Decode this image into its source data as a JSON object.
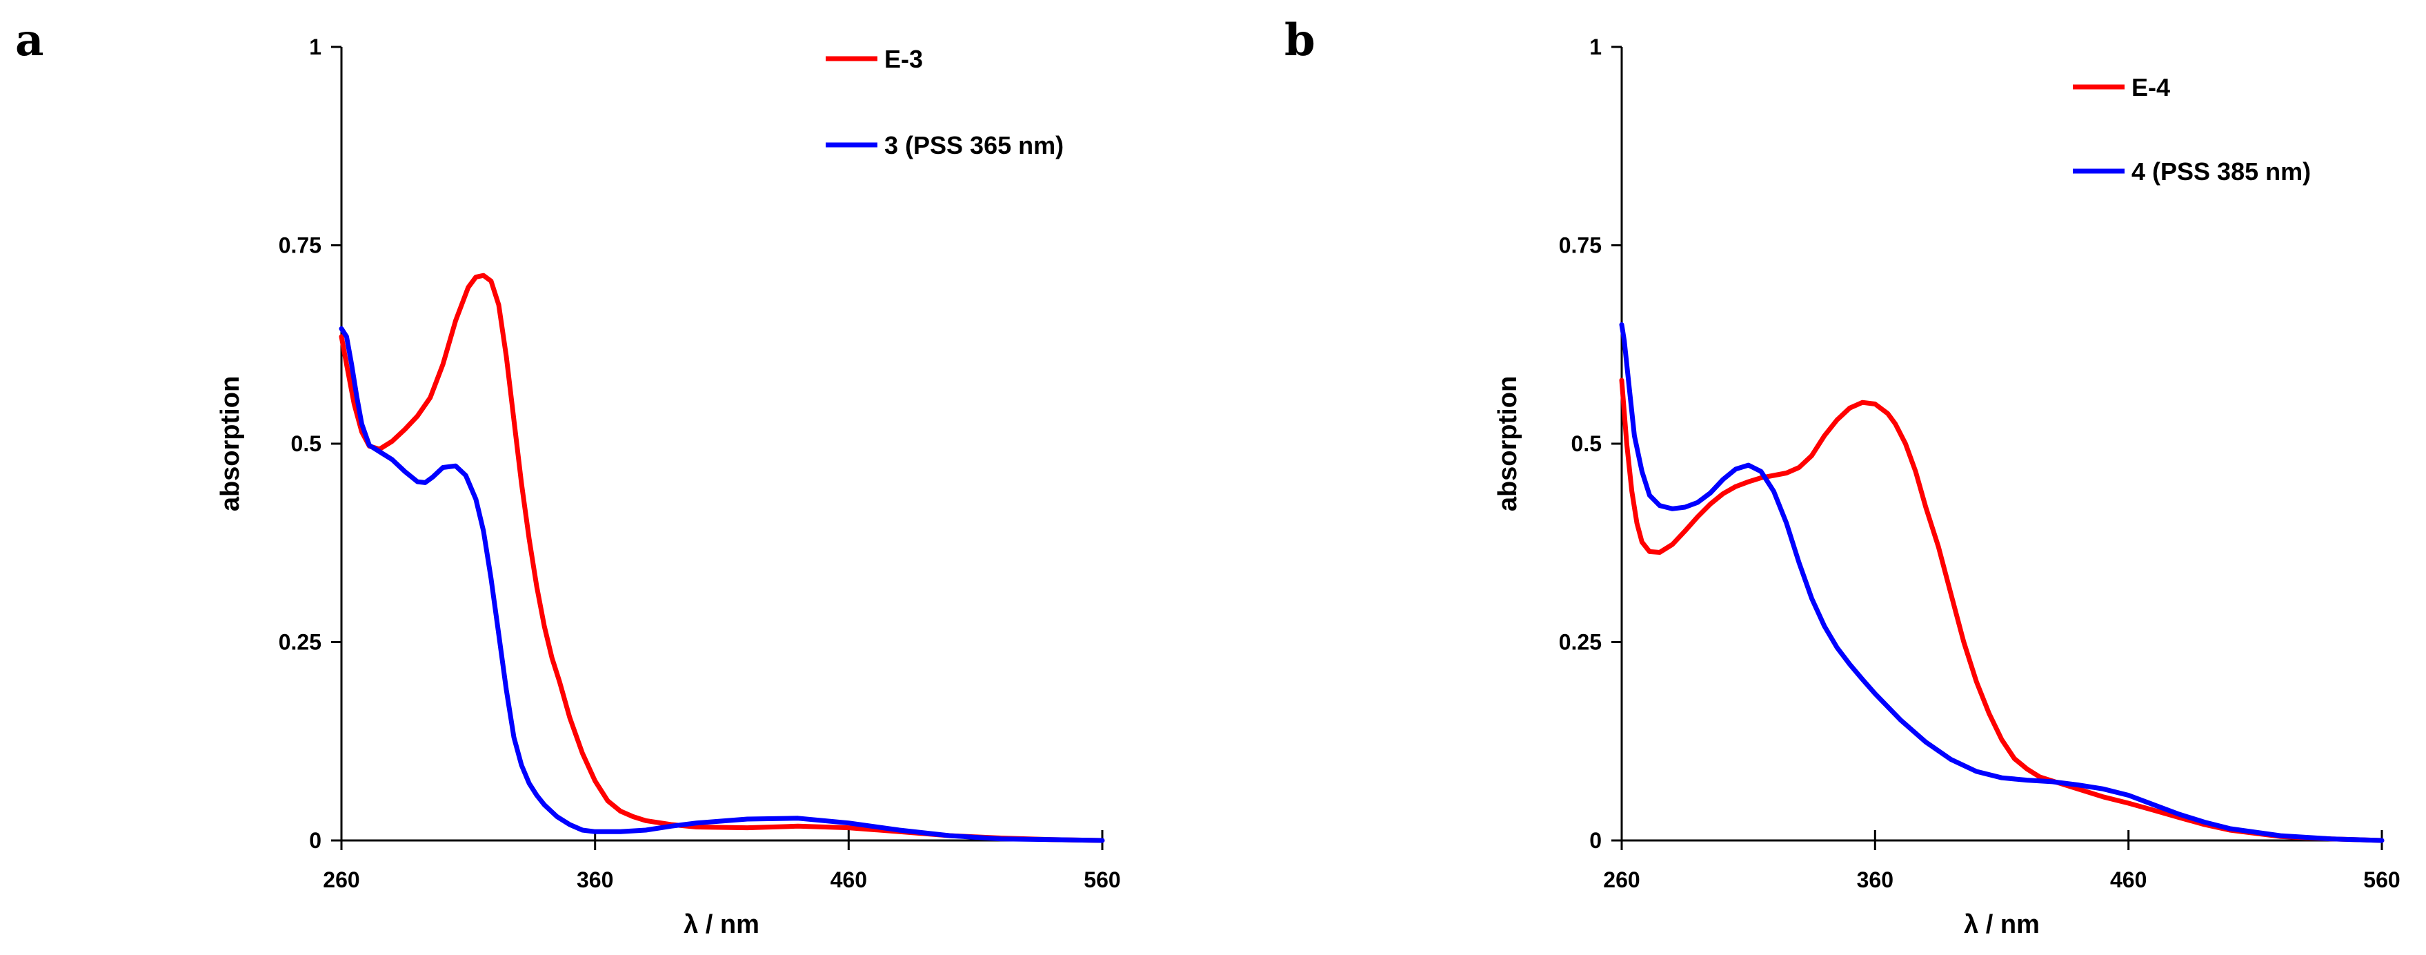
{
  "chart_data": [
    {
      "type": "line",
      "panel_label": "a",
      "xlabel": "λ / nm",
      "ylabel": "absorption",
      "xlim": [
        260,
        560
      ],
      "ylim": [
        0,
        1
      ],
      "xticks": [
        260,
        360,
        460,
        560
      ],
      "xtick_labels": [
        "260",
        "360",
        "460",
        "560"
      ],
      "yticks": [
        0,
        0.25,
        0.5,
        0.75,
        1
      ],
      "ytick_labels": [
        "0",
        "0.25",
        "0.5",
        "0.75",
        "1"
      ],
      "legend": "top-right",
      "grid": false,
      "series": [
        {
          "name": "E-3",
          "color": "#ff0000",
          "x": [
            260,
            262,
            265,
            268,
            271,
            275,
            280,
            285,
            290,
            295,
            300,
            305,
            310,
            313,
            316,
            319,
            322,
            325,
            328,
            331,
            334,
            337,
            340,
            343,
            346,
            350,
            355,
            360,
            365,
            370,
            375,
            380,
            390,
            400,
            420,
            440,
            460,
            480,
            500,
            520,
            540,
            560
          ],
          "y": [
            0.635,
            0.6,
            0.55,
            0.515,
            0.497,
            0.493,
            0.503,
            0.518,
            0.535,
            0.558,
            0.6,
            0.655,
            0.697,
            0.71,
            0.712,
            0.705,
            0.675,
            0.61,
            0.53,
            0.45,
            0.38,
            0.32,
            0.27,
            0.23,
            0.2,
            0.155,
            0.11,
            0.075,
            0.05,
            0.037,
            0.03,
            0.025,
            0.02,
            0.017,
            0.016,
            0.018,
            0.016,
            0.011,
            0.006,
            0.003,
            0.001,
            0.0
          ]
        },
        {
          "name": "3 (PSS 365 nm)",
          "color": "#0000ff",
          "x": [
            260,
            262,
            264,
            266,
            268,
            271,
            275,
            280,
            285,
            290,
            293,
            296,
            300,
            305,
            309,
            313,
            316,
            319,
            322,
            325,
            328,
            331,
            334,
            337,
            340,
            345,
            350,
            355,
            360,
            370,
            380,
            390,
            400,
            420,
            440,
            460,
            480,
            500,
            520,
            540,
            560
          ],
          "y": [
            0.645,
            0.635,
            0.6,
            0.56,
            0.525,
            0.498,
            0.49,
            0.48,
            0.465,
            0.452,
            0.451,
            0.458,
            0.47,
            0.472,
            0.46,
            0.43,
            0.39,
            0.33,
            0.26,
            0.19,
            0.13,
            0.095,
            0.072,
            0.057,
            0.045,
            0.03,
            0.02,
            0.013,
            0.011,
            0.011,
            0.013,
            0.018,
            0.022,
            0.027,
            0.028,
            0.022,
            0.013,
            0.006,
            0.002,
            0.001,
            0.0
          ]
        }
      ]
    },
    {
      "type": "line",
      "panel_label": "b",
      "xlabel": "λ / nm",
      "ylabel": "absorption",
      "xlim": [
        260,
        560
      ],
      "ylim": [
        0,
        1
      ],
      "xticks": [
        260,
        360,
        460,
        560
      ],
      "xtick_labels": [
        "260",
        "360",
        "460",
        "560"
      ],
      "yticks": [
        0,
        0.25,
        0.5,
        0.75,
        1
      ],
      "ytick_labels": [
        "0",
        "0.25",
        "0.5",
        "0.75",
        "1"
      ],
      "legend": "top-right",
      "grid": false,
      "series": [
        {
          "name": "E-4",
          "color": "#ff0000",
          "x": [
            260,
            262,
            264,
            266,
            268,
            271,
            275,
            280,
            285,
            290,
            295,
            300,
            305,
            310,
            315,
            320,
            325,
            330,
            335,
            340,
            345,
            350,
            355,
            360,
            365,
            368,
            372,
            376,
            380,
            385,
            390,
            395,
            400,
            405,
            410,
            415,
            420,
            425,
            430,
            440,
            450,
            460,
            470,
            480,
            490,
            500,
            520,
            540,
            560
          ],
          "y": [
            0.58,
            0.5,
            0.44,
            0.4,
            0.376,
            0.364,
            0.363,
            0.373,
            0.39,
            0.408,
            0.424,
            0.437,
            0.446,
            0.452,
            0.457,
            0.46,
            0.463,
            0.47,
            0.485,
            0.51,
            0.53,
            0.545,
            0.552,
            0.55,
            0.538,
            0.525,
            0.5,
            0.465,
            0.42,
            0.37,
            0.31,
            0.25,
            0.2,
            0.16,
            0.127,
            0.103,
            0.09,
            0.08,
            0.075,
            0.065,
            0.055,
            0.047,
            0.038,
            0.029,
            0.02,
            0.013,
            0.005,
            0.002,
            0.0
          ]
        },
        {
          "name": "4 (PSS 385 nm)",
          "color": "#0000ff",
          "x": [
            260,
            261,
            263,
            265,
            268,
            271,
            275,
            280,
            285,
            290,
            295,
            300,
            305,
            310,
            315,
            320,
            325,
            330,
            335,
            340,
            345,
            350,
            355,
            360,
            370,
            380,
            390,
            400,
            410,
            420,
            430,
            440,
            450,
            460,
            470,
            480,
            490,
            500,
            520,
            540,
            560
          ],
          "y": [
            0.65,
            0.63,
            0.57,
            0.51,
            0.465,
            0.435,
            0.422,
            0.418,
            0.42,
            0.426,
            0.438,
            0.455,
            0.468,
            0.473,
            0.465,
            0.44,
            0.4,
            0.35,
            0.305,
            0.27,
            0.243,
            0.222,
            0.203,
            0.185,
            0.152,
            0.124,
            0.102,
            0.087,
            0.079,
            0.076,
            0.074,
            0.07,
            0.065,
            0.057,
            0.045,
            0.033,
            0.023,
            0.015,
            0.006,
            0.002,
            0.0
          ]
        }
      ]
    }
  ]
}
